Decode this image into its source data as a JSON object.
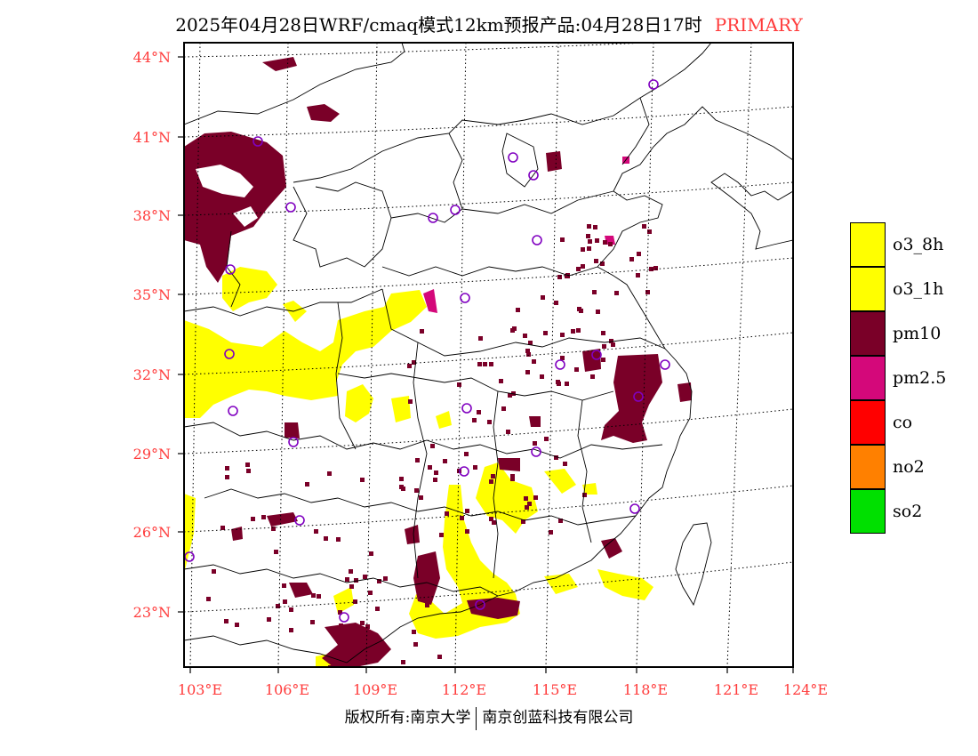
{
  "title": {
    "text": "2025年04月28日WRF/cmaq模式12km预报产品:04月28日17时",
    "tag": "PRIMARY"
  },
  "map": {
    "lat_labels": [
      "44°N",
      "41°N",
      "38°N",
      "35°N",
      "32°N",
      "29°N",
      "26°N",
      "23°N"
    ],
    "lon_labels": [
      "103°E",
      "106°E",
      "109°E",
      "112°E",
      "115°E",
      "118°E",
      "121°E",
      "124°E"
    ],
    "station_marker": "circle-icon",
    "label_color": "#ff3b3b"
  },
  "legend": [
    {
      "label": "o3_8h",
      "color": "#ffff00"
    },
    {
      "label": "o3_1h",
      "color": "#ffff00"
    },
    {
      "label": "pm10",
      "color": "#7a0028"
    },
    {
      "label": "pm2.5",
      "color": "#d4087a"
    },
    {
      "label": "co",
      "color": "#ff0000"
    },
    {
      "label": "no2",
      "color": "#ff8000"
    },
    {
      "label": "so2",
      "color": "#00e000"
    }
  ],
  "copyright": {
    "left": "版权所有:南京大学",
    "right": "南京创蓝科技有限公司"
  }
}
